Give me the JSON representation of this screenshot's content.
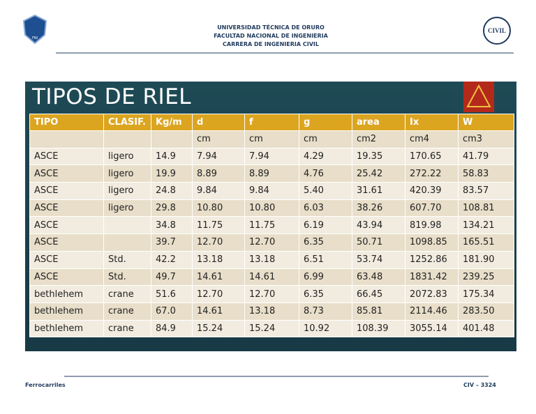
{
  "header": {
    "lines": [
      "UNIVERSIDAD TÉCNICA DE ORURO",
      "FACULTAD NACIONAL DE INGENIERIA",
      "CARRERA DE INGENIERIA CIVIL"
    ],
    "left_logo_text": "FNI",
    "right_logo_text": "CIVIL"
  },
  "slide": {
    "title": "TIPOS DE RIEL"
  },
  "table": {
    "columns": [
      "TIPO",
      "CLASIF.",
      "Kg/m",
      "d",
      "f",
      "g",
      "area",
      "Ix",
      "W"
    ],
    "units": [
      "cm",
      "cm",
      "cm",
      "cm2",
      "cm4",
      "cm3"
    ],
    "rows": [
      [
        "ASCE",
        "ligero",
        "14.9",
        "7.94",
        "7.94",
        "4.29",
        "19.35",
        "170.65",
        "41.79"
      ],
      [
        "ASCE",
        "ligero",
        "19.9",
        "8.89",
        "8.89",
        "4.76",
        "25.42",
        "272.22",
        "58.83"
      ],
      [
        "ASCE",
        "ligero",
        "24.8",
        "9.84",
        "9.84",
        "5.40",
        "31.61",
        "420.39",
        "83.57"
      ],
      [
        "ASCE",
        "ligero",
        "29.8",
        "10.80",
        "10.80",
        "6.03",
        "38.26",
        "607.70",
        "108.81"
      ],
      [
        "ASCE",
        null,
        "34.8",
        "11.75",
        "11.75",
        "6.19",
        "43.94",
        "819.98",
        "134.21"
      ],
      [
        "ASCE",
        null,
        "39.7",
        "12.70",
        "12.70",
        "6.35",
        "50.71",
        "1098.85",
        "165.51"
      ],
      [
        "ASCE",
        "Std.",
        "42.2",
        "13.18",
        "13.18",
        "6.51",
        "53.74",
        "1252.86",
        "181.90"
      ],
      [
        "ASCE",
        "Std.",
        "49.7",
        "14.61",
        "14.61",
        "6.99",
        "63.48",
        "1831.42",
        "239.25"
      ],
      [
        "bethlehem",
        "crane",
        "51.6",
        "12.70",
        "12.70",
        "6.35",
        "66.45",
        "2072.83",
        "175.34"
      ],
      [
        "bethlehem",
        "crane",
        "67.0",
        "14.61",
        "13.18",
        "8.73",
        "85.81",
        "2114.46",
        "283.50"
      ],
      [
        "bethlehem",
        "crane",
        "84.9",
        "15.24",
        "15.24",
        "10.92",
        "108.39",
        "3055.14",
        "401.48"
      ]
    ]
  },
  "footer": {
    "left": "Ferrocarriles",
    "right": "CIV – 3324"
  }
}
